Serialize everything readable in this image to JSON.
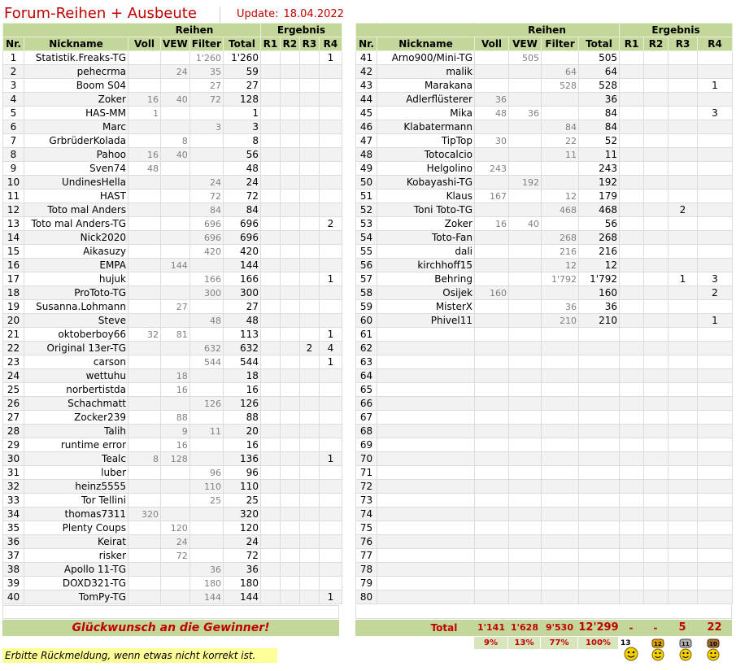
{
  "title": "Forum-Reihen + Ausbeute",
  "update_label": "Update:",
  "update_date": "18.04.2022",
  "headers": {
    "nr": "Nr.",
    "nick": "Nickname",
    "reihen": "Reihen",
    "ergebnis": "Ergebnis",
    "voll": "Voll",
    "vew": "VEW",
    "filter": "Filter",
    "total": "Total",
    "r1": "R1",
    "r2": "R2",
    "r3": "R3",
    "r4": "R4"
  },
  "left": [
    [
      "1",
      "Statistik.Freaks-TG",
      "",
      "",
      "1'260",
      "1'260",
      "",
      "",
      "",
      "1"
    ],
    [
      "2",
      "pehecrma",
      "",
      "24",
      "35",
      "59",
      "",
      "",
      "",
      ""
    ],
    [
      "3",
      "Boom S04",
      "",
      "",
      "27",
      "27",
      "",
      "",
      "",
      ""
    ],
    [
      "4",
      "Zoker",
      "16",
      "40",
      "72",
      "128",
      "",
      "",
      "",
      ""
    ],
    [
      "5",
      "HAS-MM",
      "1",
      "",
      "",
      "1",
      "",
      "",
      "",
      ""
    ],
    [
      "6",
      "Marc",
      "",
      "",
      "3",
      "3",
      "",
      "",
      "",
      ""
    ],
    [
      "7",
      "GrbrüderKolada",
      "",
      "8",
      "",
      "8",
      "",
      "",
      "",
      ""
    ],
    [
      "8",
      "Pahoo",
      "16",
      "40",
      "",
      "56",
      "",
      "",
      "",
      ""
    ],
    [
      "9",
      "Sven74",
      "48",
      "",
      "",
      "48",
      "",
      "",
      "",
      ""
    ],
    [
      "10",
      "UndinesHella",
      "",
      "",
      "24",
      "24",
      "",
      "",
      "",
      ""
    ],
    [
      "11",
      "HAST",
      "",
      "",
      "72",
      "72",
      "",
      "",
      "",
      ""
    ],
    [
      "12",
      "Toto mal Anders",
      "",
      "",
      "84",
      "84",
      "",
      "",
      "",
      ""
    ],
    [
      "13",
      "Toto mal Anders-TG",
      "",
      "",
      "696",
      "696",
      "",
      "",
      "",
      "2"
    ],
    [
      "14",
      "Nick2020",
      "",
      "",
      "696",
      "696",
      "",
      "",
      "",
      ""
    ],
    [
      "15",
      "Aikasuzy",
      "",
      "",
      "420",
      "420",
      "",
      "",
      "",
      ""
    ],
    [
      "16",
      "EMPA",
      "",
      "144",
      "",
      "144",
      "",
      "",
      "",
      ""
    ],
    [
      "17",
      "hujuk",
      "",
      "",
      "166",
      "166",
      "",
      "",
      "",
      "1"
    ],
    [
      "18",
      "ProToto-TG",
      "",
      "",
      "300",
      "300",
      "",
      "",
      "",
      ""
    ],
    [
      "19",
      "Susanna.Lohmann",
      "",
      "27",
      "",
      "27",
      "",
      "",
      "",
      ""
    ],
    [
      "20",
      "Steve",
      "",
      "",
      "48",
      "48",
      "",
      "",
      "",
      ""
    ],
    [
      "21",
      "oktoberboy66",
      "32",
      "81",
      "",
      "113",
      "",
      "",
      "",
      "1"
    ],
    [
      "22",
      "Original 13er-TG",
      "",
      "",
      "632",
      "632",
      "",
      "",
      "2",
      "4"
    ],
    [
      "23",
      "carson",
      "",
      "",
      "544",
      "544",
      "",
      "",
      "",
      "1"
    ],
    [
      "24",
      "wettuhu",
      "",
      "18",
      "",
      "18",
      "",
      "",
      "",
      ""
    ],
    [
      "25",
      "norbertistda",
      "",
      "16",
      "",
      "16",
      "",
      "",
      "",
      ""
    ],
    [
      "26",
      "Schachmatt",
      "",
      "",
      "126",
      "126",
      "",
      "",
      "",
      ""
    ],
    [
      "27",
      "Zocker239",
      "",
      "88",
      "",
      "88",
      "",
      "",
      "",
      ""
    ],
    [
      "28",
      "Talih",
      "",
      "9",
      "11",
      "20",
      "",
      "",
      "",
      ""
    ],
    [
      "29",
      "runtime error",
      "",
      "16",
      "",
      "16",
      "",
      "",
      "",
      ""
    ],
    [
      "30",
      "Tealc",
      "8",
      "128",
      "",
      "136",
      "",
      "",
      "",
      "1"
    ],
    [
      "31",
      "luber",
      "",
      "",
      "96",
      "96",
      "",
      "",
      "",
      ""
    ],
    [
      "32",
      "heinz5555",
      "",
      "",
      "110",
      "110",
      "",
      "",
      "",
      ""
    ],
    [
      "33",
      "Tor Tellini",
      "",
      "",
      "25",
      "25",
      "",
      "",
      "",
      ""
    ],
    [
      "34",
      "thomas7311",
      "320",
      "",
      "",
      "320",
      "",
      "",
      "",
      ""
    ],
    [
      "35",
      "Plenty Coups",
      "",
      "120",
      "",
      "120",
      "",
      "",
      "",
      ""
    ],
    [
      "36",
      "Keirat",
      "",
      "24",
      "",
      "24",
      "",
      "",
      "",
      ""
    ],
    [
      "37",
      "risker",
      "",
      "72",
      "",
      "72",
      "",
      "",
      "",
      ""
    ],
    [
      "38",
      "Apollo 11-TG",
      "",
      "",
      "36",
      "36",
      "",
      "",
      "",
      ""
    ],
    [
      "39",
      "DOXD321-TG",
      "",
      "",
      "180",
      "180",
      "",
      "",
      "",
      ""
    ],
    [
      "40",
      "TomPy-TG",
      "",
      "",
      "144",
      "144",
      "",
      "",
      "",
      "1"
    ]
  ],
  "right": [
    [
      "41",
      "Arno900/Mini-TG",
      "",
      "505",
      "",
      "505",
      "",
      "",
      "",
      ""
    ],
    [
      "42",
      "malik",
      "",
      "",
      "64",
      "64",
      "",
      "",
      "",
      ""
    ],
    [
      "43",
      "Marakana",
      "",
      "",
      "528",
      "528",
      "",
      "",
      "",
      "1"
    ],
    [
      "44",
      "Adlerflüsterer",
      "36",
      "",
      "",
      "36",
      "",
      "",
      "",
      ""
    ],
    [
      "45",
      "Mika",
      "48",
      "36",
      "",
      "84",
      "",
      "",
      "",
      "3"
    ],
    [
      "46",
      "Klabatermann",
      "",
      "",
      "84",
      "84",
      "",
      "",
      "",
      ""
    ],
    [
      "47",
      "TipTop",
      "30",
      "",
      "22",
      "52",
      "",
      "",
      "",
      ""
    ],
    [
      "48",
      "Totocalcio",
      "",
      "",
      "11",
      "11",
      "",
      "",
      "",
      ""
    ],
    [
      "49",
      "Helgolino",
      "243",
      "",
      "",
      "243",
      "",
      "",
      "",
      ""
    ],
    [
      "50",
      "Kobayashi-TG",
      "",
      "192",
      "",
      "192",
      "",
      "",
      "",
      ""
    ],
    [
      "51",
      "Klaus",
      "167",
      "",
      "12",
      "179",
      "",
      "",
      "",
      ""
    ],
    [
      "52",
      "Toni Toto-TG",
      "",
      "",
      "468",
      "468",
      "",
      "",
      "2",
      ""
    ],
    [
      "53",
      "Zoker",
      "16",
      "40",
      "",
      "56",
      "",
      "",
      "",
      ""
    ],
    [
      "54",
      "Toto-Fan",
      "",
      "",
      "268",
      "268",
      "",
      "",
      "",
      ""
    ],
    [
      "55",
      "dali",
      "",
      "",
      "216",
      "216",
      "",
      "",
      "",
      ""
    ],
    [
      "56",
      "kirchhoff15",
      "",
      "",
      "12",
      "12",
      "",
      "",
      "",
      ""
    ],
    [
      "57",
      "Behring",
      "",
      "",
      "1'792",
      "1'792",
      "",
      "",
      "1",
      "3"
    ],
    [
      "58",
      "Osijek",
      "160",
      "",
      "",
      "160",
      "",
      "",
      "",
      "2"
    ],
    [
      "59",
      "MisterX",
      "",
      "",
      "36",
      "36",
      "",
      "",
      "",
      ""
    ],
    [
      "60",
      "Phivel11",
      "",
      "",
      "210",
      "210",
      "",
      "",
      "",
      "1"
    ],
    [
      "61",
      "",
      "",
      "",
      "",
      "",
      "",
      "",
      "",
      ""
    ],
    [
      "62",
      "",
      "",
      "",
      "",
      "",
      "",
      "",
      "",
      ""
    ],
    [
      "63",
      "",
      "",
      "",
      "",
      "",
      "",
      "",
      "",
      ""
    ],
    [
      "64",
      "",
      "",
      "",
      "",
      "",
      "",
      "",
      "",
      ""
    ],
    [
      "65",
      "",
      "",
      "",
      "",
      "",
      "",
      "",
      "",
      ""
    ],
    [
      "66",
      "",
      "",
      "",
      "",
      "",
      "",
      "",
      "",
      ""
    ],
    [
      "67",
      "",
      "",
      "",
      "",
      "",
      "",
      "",
      "",
      ""
    ],
    [
      "68",
      "",
      "",
      "",
      "",
      "",
      "",
      "",
      "",
      ""
    ],
    [
      "69",
      "",
      "",
      "",
      "",
      "",
      "",
      "",
      "",
      ""
    ],
    [
      "70",
      "",
      "",
      "",
      "",
      "",
      "",
      "",
      "",
      ""
    ],
    [
      "71",
      "",
      "",
      "",
      "",
      "",
      "",
      "",
      "",
      ""
    ],
    [
      "72",
      "",
      "",
      "",
      "",
      "",
      "",
      "",
      "",
      ""
    ],
    [
      "73",
      "",
      "",
      "",
      "",
      "",
      "",
      "",
      "",
      ""
    ],
    [
      "74",
      "",
      "",
      "",
      "",
      "",
      "",
      "",
      "",
      ""
    ],
    [
      "75",
      "",
      "",
      "",
      "",
      "",
      "",
      "",
      "",
      ""
    ],
    [
      "76",
      "",
      "",
      "",
      "",
      "",
      "",
      "",
      "",
      ""
    ],
    [
      "77",
      "",
      "",
      "",
      "",
      "",
      "",
      "",
      "",
      ""
    ],
    [
      "78",
      "",
      "",
      "",
      "",
      "",
      "",
      "",
      "",
      ""
    ],
    [
      "79",
      "",
      "",
      "",
      "",
      "",
      "",
      "",
      "",
      ""
    ],
    [
      "80",
      "",
      "",
      "",
      "",
      "",
      "",
      "",
      "",
      ""
    ]
  ],
  "congrats": "Glückwunsch an die Gewinner!",
  "totals": {
    "label": "Total",
    "voll": "1'141",
    "vew": "1'628",
    "filter": "9'530",
    "total": "12'299",
    "r1": "-",
    "r2": "-",
    "r3": "5",
    "r4": "22"
  },
  "percents": {
    "voll": "9%",
    "vew": "13%",
    "filter": "77%",
    "total": "100%"
  },
  "note": "Erbitte Rückmeldung, wenn etwas nicht korrekt ist.",
  "icons": [
    "13er-smiley-icon",
    "12er-trophy-smiley-icon",
    "11er-trophy-smiley-icon",
    "10er-trophy-smiley-icon"
  ],
  "icon_labels": [
    "13",
    "12",
    "11",
    "10"
  ],
  "colors": {
    "header": "#c4d79b",
    "accent": "#c00000",
    "note": "#ffff99"
  }
}
